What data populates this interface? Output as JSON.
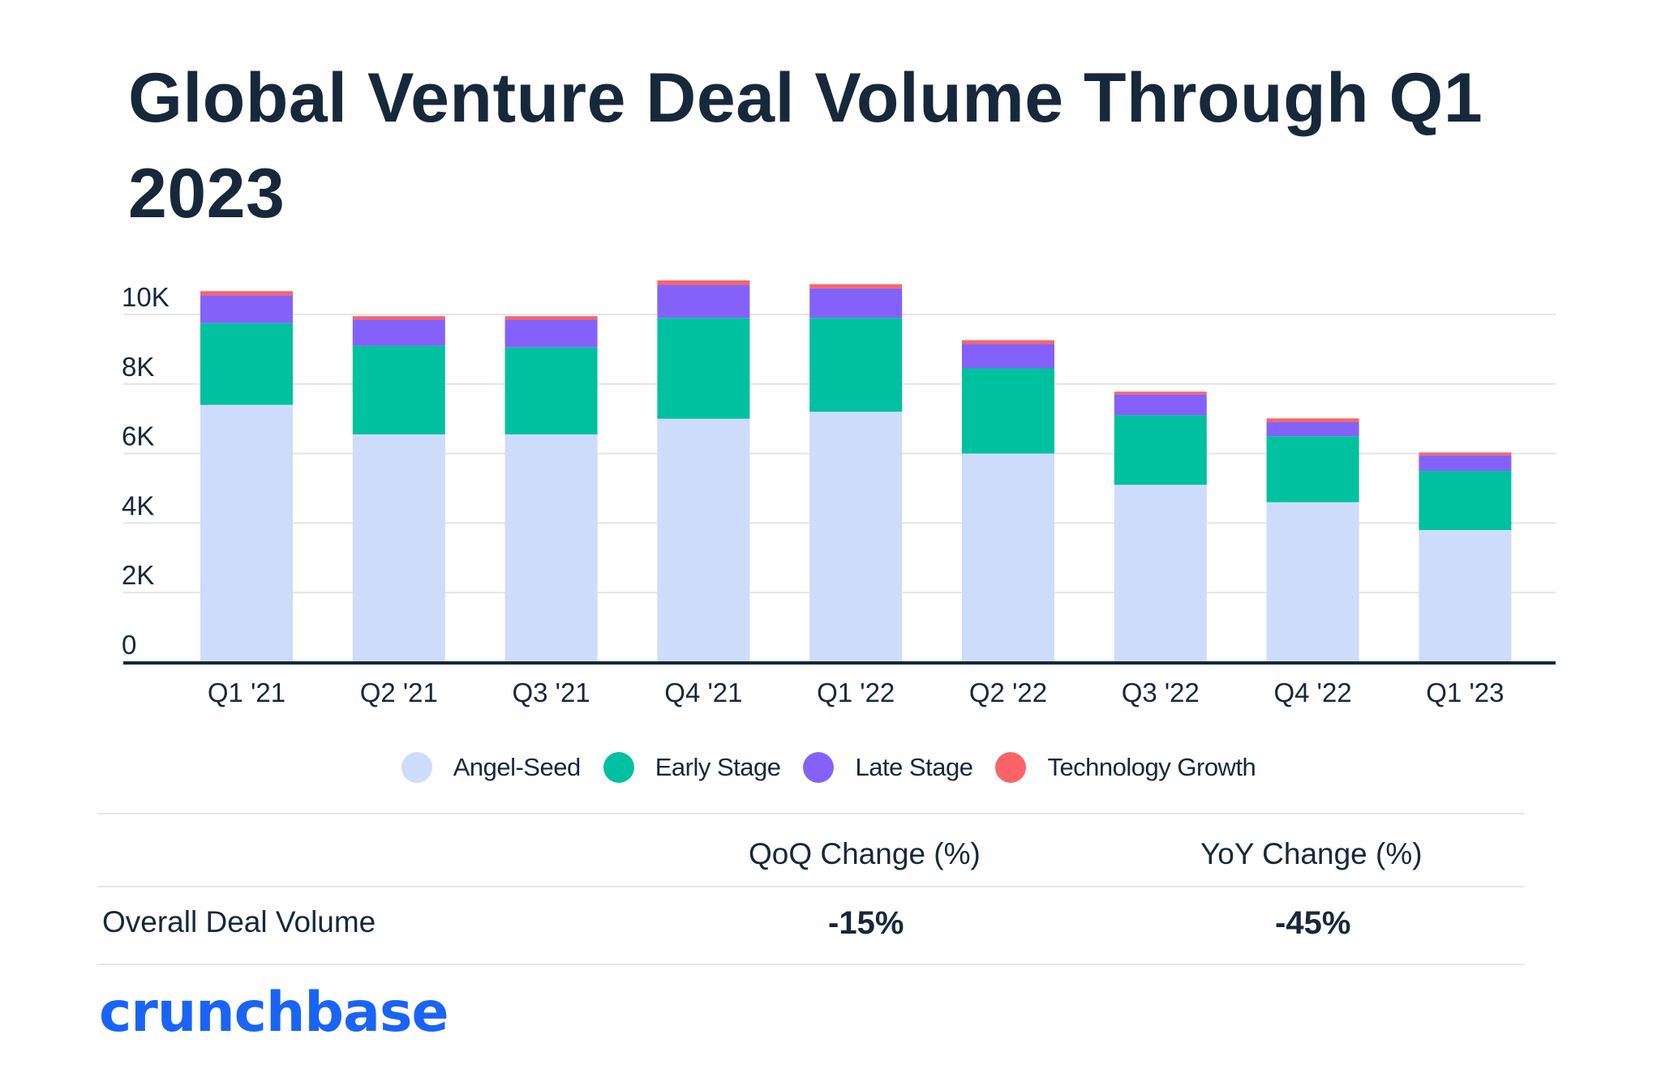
{
  "title": "Global Venture Deal Volume Through Q1 2023",
  "colors": {
    "angel_seed": "#cddcfa",
    "early_stage": "#00c19f",
    "late_stage": "#8462fa",
    "technology_growth": "#fa6468",
    "axis": "#17283b",
    "grid": "#e2e5e9",
    "brand": "#1a64f5"
  },
  "chart_data": {
    "type": "bar",
    "stacked": true,
    "title": "Global Venture Deal Volume Through Q1 2023",
    "xlabel": "",
    "ylabel": "",
    "ylim": [
      0,
      10000
    ],
    "y_ticks": [
      0,
      2000,
      4000,
      6000,
      8000,
      10000
    ],
    "y_tick_labels": [
      "0",
      "2K",
      "4K",
      "6K",
      "8K",
      "10K"
    ],
    "grid": true,
    "legend_position": "bottom-center",
    "categories": [
      "Q1 '21",
      "Q2 '21",
      "Q3 '21",
      "Q4 '21",
      "Q1 '22",
      "Q2 '22",
      "Q3 '22",
      "Q4 '22",
      "Q1 '23"
    ],
    "series": [
      {
        "name": "Angel-Seed",
        "color_key": "angel_seed",
        "values": [
          7400,
          6550,
          6550,
          7000,
          7200,
          6000,
          5100,
          4600,
          3800
        ]
      },
      {
        "name": "Early Stage",
        "color_key": "early_stage",
        "values": [
          2350,
          2550,
          2500,
          2900,
          2700,
          2450,
          2000,
          1900,
          1700
        ]
      },
      {
        "name": "Late Stage",
        "color_key": "late_stage",
        "values": [
          800,
          750,
          800,
          950,
          850,
          700,
          600,
          400,
          450
        ]
      },
      {
        "name": "Technology Growth",
        "color_key": "technology_growth",
        "values": [
          120,
          100,
          100,
          130,
          120,
          110,
          80,
          110,
          80
        ]
      }
    ]
  },
  "legend": {
    "items": [
      {
        "label": "Angel-Seed",
        "color_key": "angel_seed"
      },
      {
        "label": "Early Stage",
        "color_key": "early_stage"
      },
      {
        "label": "Late Stage",
        "color_key": "late_stage"
      },
      {
        "label": "Technology Growth",
        "color_key": "technology_growth"
      }
    ]
  },
  "table": {
    "headers": {
      "qoq": "QoQ Change (%)",
      "yoy": "YoY Change (%)"
    },
    "row": {
      "label": "Overall Deal Volume",
      "qoq": "-15%",
      "yoy": "-45%"
    }
  },
  "logo": {
    "text": "crunchbase"
  }
}
